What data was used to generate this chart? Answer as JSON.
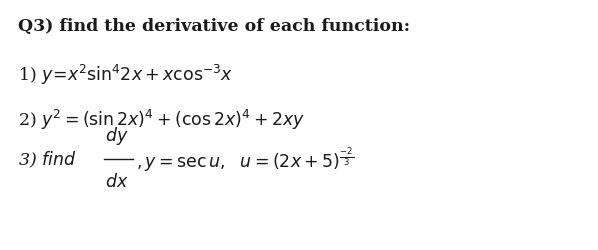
{
  "background_color": "#ffffff",
  "title_text": "Q3) find the derivative of each function:",
  "title_fontsize": 12.5,
  "body_fontsize": 12.5,
  "text_color": "#1a1a1a",
  "fig_width": 5.98,
  "fig_height": 2.51,
  "dpi": 100
}
